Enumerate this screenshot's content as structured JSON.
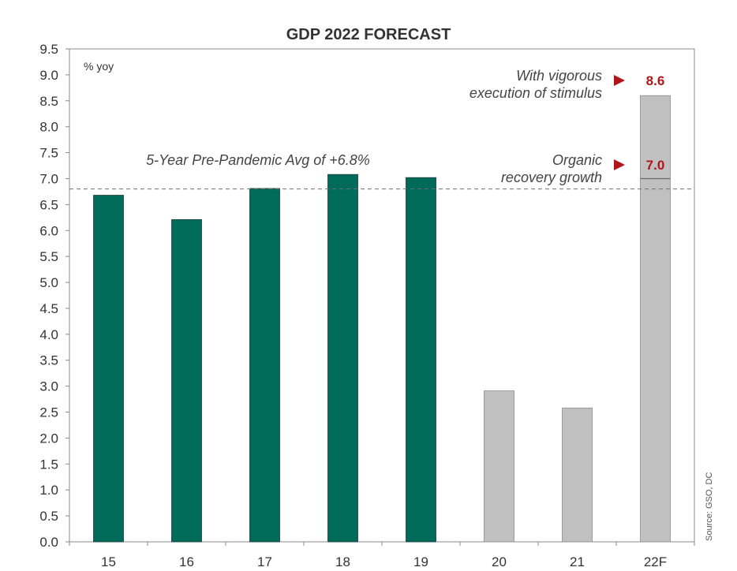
{
  "chart_data": {
    "type": "bar",
    "title": "GDP 2022 FORECAST",
    "unit_label": "% yoy",
    "categories": [
      "15",
      "16",
      "17",
      "18",
      "19",
      "20",
      "21",
      "22F"
    ],
    "values": [
      6.68,
      6.21,
      6.81,
      7.08,
      7.02,
      2.91,
      2.58,
      8.6
    ],
    "bar_colors": [
      "#006b5b",
      "#006b5b",
      "#006b5b",
      "#006b5b",
      "#006b5b",
      "#c0c0c0",
      "#c0c0c0",
      "#c0c0c0"
    ],
    "ylim": [
      0,
      9.5
    ],
    "yticks": [
      "0.0",
      "0.5",
      "1.0",
      "1.5",
      "2.0",
      "2.5",
      "3.0",
      "3.5",
      "4.0",
      "4.5",
      "5.0",
      "5.5",
      "6.0",
      "6.5",
      "7.0",
      "7.5",
      "8.0",
      "8.5",
      "9.0",
      "9.5"
    ],
    "grid": false,
    "reference_line": {
      "value": 6.8,
      "label": "5-Year Pre-Pandemic Avg of +6.8%"
    },
    "forecast_split": {
      "category": "22F",
      "at": 7.0
    },
    "annotations": [
      {
        "line1": "With vigorous",
        "line2": "execution of stimulus",
        "value": 8.6,
        "value_label": "8.6"
      },
      {
        "line1": "Organic",
        "line2": "recovery growth",
        "value": 7.0,
        "value_label": "7.0"
      }
    ],
    "source": "Source: GSO, DC"
  },
  "colors": {
    "green": "#006b5b",
    "grey": "#c0c0c0",
    "accent_red": "#b3141a",
    "axis": "#888888"
  }
}
